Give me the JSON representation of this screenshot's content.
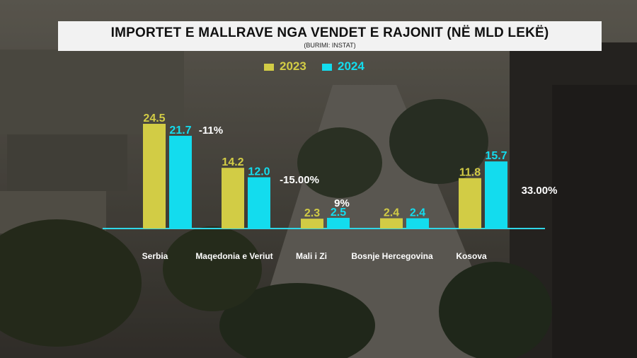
{
  "header": {
    "title": "IMPORTET E MALLRAVE NGA VENDET E RAJONIT (NË MLD LEKË)",
    "subtitle": "(BURIMI: INSTAT)"
  },
  "colors": {
    "y2023": "#d2cc45",
    "y2024": "#13dcee",
    "baseline": "#2fd7e8",
    "text_light": "#ffffff"
  },
  "chart_data": {
    "type": "bar",
    "title": "IMPORTET E MALLRAVE NGA VENDET E RAJONIT (NË MLD LEKË)",
    "subtitle": "(BURIMI: INSTAT)",
    "categories": [
      "Serbia",
      "Maqedonia e Veriut",
      "Mali i Zi",
      "Bosnje Hercegovina",
      "Kosova"
    ],
    "series": [
      {
        "name": "2023",
        "values": [
          24.5,
          14.2,
          2.3,
          2.4,
          11.8
        ],
        "labels": [
          "24.5",
          "14.2",
          "2.3",
          "2.4",
          "11.8"
        ]
      },
      {
        "name": "2024",
        "values": [
          21.7,
          12.0,
          2.5,
          2.4,
          15.7
        ],
        "labels": [
          "21.7",
          "12.0",
          "2.5",
          "2.4",
          "15.7"
        ]
      }
    ],
    "change_labels": [
      "-11%",
      "-15.00%",
      "9%",
      "",
      "33.00%"
    ],
    "ylim": [
      0,
      25
    ],
    "xlabel": "",
    "ylabel": "",
    "legend_position": "top-center",
    "grid": false
  }
}
